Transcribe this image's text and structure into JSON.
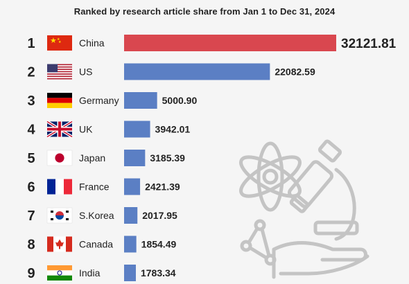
{
  "subtitle": "Ranked by research article share from Jan 1 to Dec 31, 2024",
  "chart_data": {
    "type": "bar",
    "orientation": "horizontal",
    "ranks": [
      "1",
      "2",
      "3",
      "4",
      "5",
      "6",
      "7",
      "8",
      "9"
    ],
    "categories": [
      "China",
      "US",
      "Germany",
      "UK",
      "Japan",
      "France",
      "S.Korea",
      "Canada",
      "India"
    ],
    "values": [
      32121.81,
      22082.59,
      5000.9,
      3942.01,
      3185.39,
      2421.39,
      2017.95,
      1854.49,
      1783.34
    ],
    "value_labels": [
      "32121.81",
      "22082.59",
      "5000.90",
      "3942.01",
      "3185.39",
      "2421.39",
      "2017.95",
      "1854.49",
      "1783.34"
    ],
    "flags": [
      "china-flag",
      "us-flag",
      "germany-flag",
      "uk-flag",
      "japan-flag",
      "france-flag",
      "south-korea-flag",
      "canada-flag",
      "india-flag"
    ],
    "colors": {
      "first": "#d9474f",
      "others": "#5b7fc4"
    },
    "xlim": [
      0,
      32121.81
    ],
    "title": "",
    "xlabel": "",
    "ylabel": ""
  }
}
